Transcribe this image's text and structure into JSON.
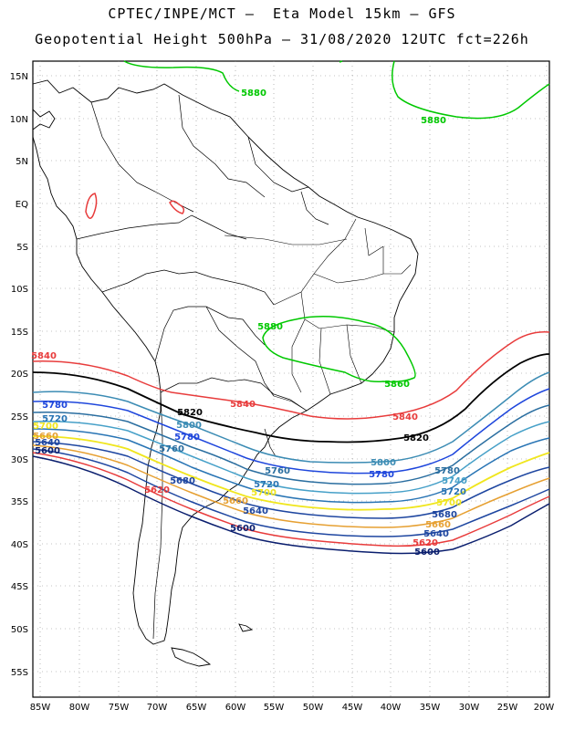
{
  "header": {
    "line1": "CPTEC/INPE/MCT –  Eta Model 15km – GFS",
    "line2": "Geopotential Height 500hPa – 31/08/2020 12UTC fct=226h"
  },
  "axes": {
    "lat_labels": [
      "15N",
      "10N",
      "5N",
      "EQ",
      "5S",
      "10S",
      "15S",
      "20S",
      "25S",
      "30S",
      "35S",
      "40S",
      "45S",
      "50S",
      "55S"
    ],
    "lon_labels": [
      "85W",
      "80W",
      "75W",
      "70W",
      "65W",
      "60W",
      "55W",
      "50W",
      "45W",
      "40W",
      "35W",
      "30W",
      "25W",
      "20W"
    ]
  },
  "colors": {
    "c5880": "#00c800",
    "c5860": "#00c800",
    "c5840": "#e83c3c",
    "c5820": "#000000",
    "c5800": "#3c8cb4",
    "c5780": "#1e46dc",
    "c5760": "#2a6ea0",
    "c5740": "#46a0c8",
    "c5720": "#2874b4",
    "c5700": "#f0e61e",
    "c5680": "#e6a032",
    "c5660": "#e6a032",
    "c5640": "#1e46a0",
    "c5620": "#e83c3c",
    "c5600": "#0a1e6e"
  },
  "contour_labels": [
    {
      "id": "l5880a",
      "text": "5880",
      "color": "c5880"
    },
    {
      "id": "l5880b",
      "text": "5880",
      "color": "c5880"
    },
    {
      "id": "l5880c",
      "text": "5880",
      "color": "c5880"
    },
    {
      "id": "l5860",
      "text": "5860",
      "color": "c5860"
    },
    {
      "id": "l5840a",
      "text": "5840",
      "color": "c5840"
    },
    {
      "id": "l5840b",
      "text": "5840",
      "color": "c5840"
    },
    {
      "id": "l5840c",
      "text": "5840",
      "color": "c5840"
    },
    {
      "id": "l5820a",
      "text": "5820",
      "color": "c5820"
    },
    {
      "id": "l5820b",
      "text": "5820",
      "color": "c5820"
    },
    {
      "id": "l5800a",
      "text": "5800",
      "color": "c5800"
    },
    {
      "id": "l5800b",
      "text": "5800",
      "color": "c5800"
    },
    {
      "id": "l5780a",
      "text": "5780",
      "color": "c5780"
    },
    {
      "id": "l5780b",
      "text": "5780",
      "color": "c5780"
    },
    {
      "id": "l5780c",
      "text": "5780",
      "color": "c5780"
    },
    {
      "id": "l5780d",
      "text": "5780",
      "color": "c5760"
    },
    {
      "id": "l5760a",
      "text": "5760",
      "color": "c5760"
    },
    {
      "id": "l5760b",
      "text": "5760",
      "color": "c5760"
    },
    {
      "id": "l5740a",
      "text": "5740",
      "color": "c5740"
    },
    {
      "id": "l5740b",
      "text": "5740",
      "color": "c5740"
    },
    {
      "id": "l5720a",
      "text": "5720",
      "color": "c5720"
    },
    {
      "id": "l5720b",
      "text": "5720",
      "color": "c5720"
    },
    {
      "id": "l5720c",
      "text": "5720",
      "color": "c5720"
    },
    {
      "id": "l5700a",
      "text": "5700",
      "color": "c5700"
    },
    {
      "id": "l5700b",
      "text": "5700",
      "color": "c5700"
    },
    {
      "id": "l5700c",
      "text": "5700",
      "color": "c5700"
    },
    {
      "id": "l5680a",
      "text": "5680",
      "color": "c5640"
    },
    {
      "id": "l5680b",
      "text": "5680",
      "color": "c5640"
    },
    {
      "id": "l5660a",
      "text": "5660",
      "color": "c5660"
    },
    {
      "id": "l5660b",
      "text": "5660",
      "color": "c5660"
    },
    {
      "id": "l5660c",
      "text": "5660",
      "color": "c5660"
    },
    {
      "id": "l5640a",
      "text": "5640",
      "color": "c5640"
    },
    {
      "id": "l5640b",
      "text": "5640",
      "color": "c5640"
    },
    {
      "id": "l5640c",
      "text": "5640",
      "color": "c5640"
    },
    {
      "id": "l5620a",
      "text": "5620",
      "color": "c5620"
    },
    {
      "id": "l5620b",
      "text": "5620",
      "color": "c5620"
    },
    {
      "id": "l5600a",
      "text": "5600",
      "color": "c5600"
    },
    {
      "id": "l5600b",
      "text": "5600",
      "color": "c5600"
    },
    {
      "id": "l5600c",
      "text": "5600",
      "color": "c5600"
    }
  ]
}
